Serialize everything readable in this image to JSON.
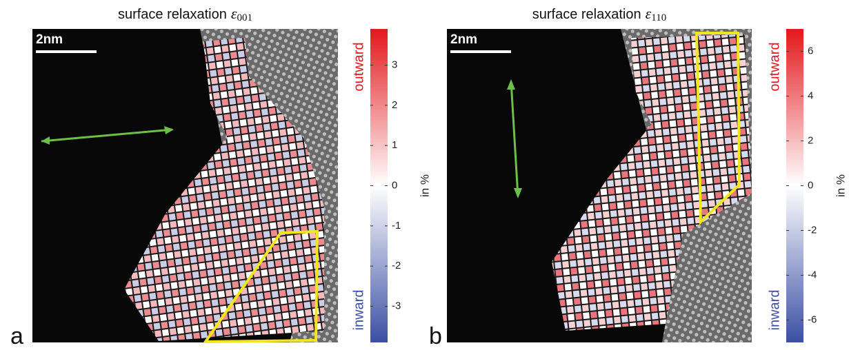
{
  "chart_data": [
    {
      "type": "heatmap",
      "title": "surface relaxation",
      "title_symbol": "ε",
      "title_subscript": "001",
      "panel_label": "a",
      "scale_bar": "2nm",
      "top_label": "outward",
      "bottom_label": "inward",
      "colorbar_label": "in %",
      "ylim": [
        -3.9,
        3.9
      ],
      "yticks": [
        -3,
        -2,
        -1,
        0,
        1,
        2,
        3
      ],
      "colors": [
        "#3b4fa3",
        "#ffffff",
        "#e3171b"
      ]
    },
    {
      "type": "heatmap",
      "title": "surface relaxation",
      "title_symbol": "ε",
      "title_subscript": "110",
      "panel_label": "b",
      "scale_bar": "2nm",
      "top_label": "outward",
      "bottom_label": "inward",
      "colorbar_label": "in %",
      "ylim": [
        -7,
        7
      ],
      "yticks": [
        -6,
        -4,
        -2,
        0,
        2,
        4,
        6
      ],
      "colors": [
        "#3b4fa3",
        "#ffffff",
        "#e3171b"
      ]
    }
  ]
}
